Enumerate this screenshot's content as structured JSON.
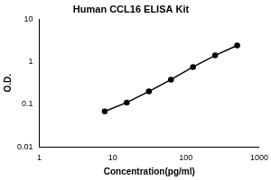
{
  "chart_data": {
    "type": "line",
    "title": "Human CCL16 ELISA Kit",
    "x_label": "Concentration(pg/ml)",
    "y_label": "O.D.",
    "x": [
      7.8,
      15.6,
      31.25,
      62.5,
      125,
      250,
      500
    ],
    "values": [
      0.068,
      0.11,
      0.2,
      0.38,
      0.75,
      1.4,
      2.4
    ],
    "color": "#000000",
    "marker": "circle",
    "log": true,
    "xlim": [
      1,
      1000
    ],
    "xticks": [
      1,
      10,
      100,
      1000
    ],
    "ylim": [
      0.01,
      10
    ],
    "yticks": [
      0.01,
      0.1,
      1,
      10
    ],
    "grid": false
  }
}
